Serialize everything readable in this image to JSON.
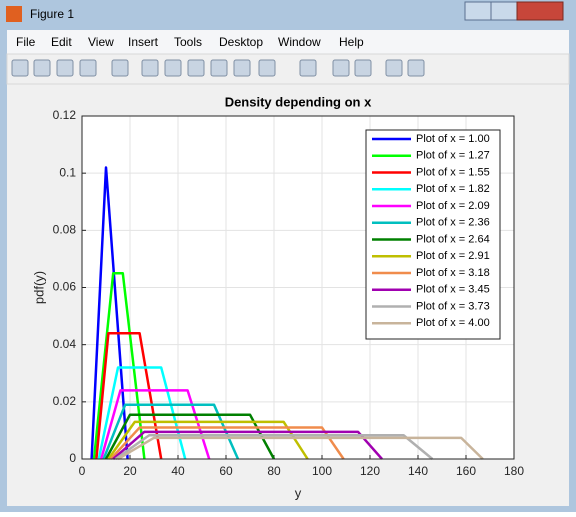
{
  "window": {
    "title": "Figure 1",
    "menu": [
      "File",
      "Edit",
      "View",
      "Insert",
      "Tools",
      "Desktop",
      "Window",
      "Help"
    ]
  },
  "chart_data": {
    "type": "line",
    "title": "Density depending on x",
    "xlabel": "y",
    "ylabel": "pdf(y)",
    "xlim": [
      0,
      180
    ],
    "xticks": [
      0,
      20,
      40,
      60,
      80,
      100,
      120,
      140,
      160,
      180
    ],
    "ylim": [
      0,
      0.12
    ],
    "yticks": [
      0,
      0.02,
      0.04,
      0.06,
      0.08,
      0.1,
      0.12
    ],
    "grid": true,
    "legend": "upper right",
    "series": [
      {
        "name": "Plot of x = 1.00",
        "color": "#0000ff",
        "x": [
          4,
          10,
          19
        ],
        "values": [
          0,
          0.102,
          0
        ]
      },
      {
        "name": "Plot of x = 1.27",
        "color": "#00ff00",
        "x": [
          5,
          13,
          17,
          26
        ],
        "values": [
          0,
          0.065,
          0.065,
          0
        ]
      },
      {
        "name": "Plot of x = 1.55",
        "color": "#ff0000",
        "x": [
          6,
          11,
          24,
          33
        ],
        "values": [
          0,
          0.044,
          0.044,
          0
        ]
      },
      {
        "name": "Plot of x = 1.82",
        "color": "#00ffff",
        "x": [
          7,
          15,
          33,
          43
        ],
        "values": [
          0,
          0.032,
          0.032,
          0
        ]
      },
      {
        "name": "Plot of x = 2.09",
        "color": "#ff00ff",
        "x": [
          8,
          16,
          44,
          53
        ],
        "values": [
          0,
          0.024,
          0.024,
          0
        ]
      },
      {
        "name": "Plot of x = 2.36",
        "color": "#00bfbf",
        "x": [
          9,
          18,
          55,
          65
        ],
        "values": [
          0,
          0.019,
          0.019,
          0
        ]
      },
      {
        "name": "Plot of x = 2.64",
        "color": "#008000",
        "x": [
          10,
          20,
          70,
          80
        ],
        "values": [
          0,
          0.0155,
          0.0155,
          0
        ]
      },
      {
        "name": "Plot of x = 2.91",
        "color": "#bfbf00",
        "x": [
          11,
          22,
          84,
          94
        ],
        "values": [
          0,
          0.013,
          0.013,
          0
        ]
      },
      {
        "name": "Plot of x = 3.18",
        "color": "#f08c4c",
        "x": [
          12,
          24,
          100,
          109
        ],
        "values": [
          0,
          0.011,
          0.011,
          0
        ]
      },
      {
        "name": "Plot of x = 3.45",
        "color": "#a000b0",
        "x": [
          13,
          26,
          115,
          125
        ],
        "values": [
          0,
          0.0095,
          0.0095,
          0
        ]
      },
      {
        "name": "Plot of x = 3.73",
        "color": "#b0b0b0",
        "x": [
          14,
          28,
          134,
          146
        ],
        "values": [
          0,
          0.0083,
          0.0083,
          0
        ]
      },
      {
        "name": "Plot of x = 4.00",
        "color": "#c8b49b",
        "x": [
          15,
          30,
          158,
          167
        ],
        "values": [
          0,
          0.0074,
          0.0074,
          0
        ]
      }
    ]
  }
}
